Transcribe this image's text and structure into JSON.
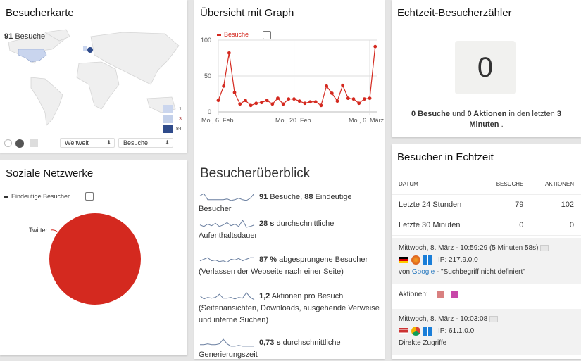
{
  "map_widget": {
    "title": "Besucherkarte",
    "total_value": "91",
    "total_label": "Besuche",
    "legend": [
      "1",
      "3",
      "84"
    ],
    "legend_colors": [
      "#cbd6ee",
      "#c3d0ea",
      "#2f4b8b"
    ],
    "region_select": "Weltweit",
    "metric_select": "Besuche",
    "highlighted": {
      "Deutschland": 84,
      "USA": 3,
      "UK": 1
    }
  },
  "social_widget": {
    "title": "Soziale Netzwerke",
    "legend": "Eindeutige Besucher",
    "chart_data": {
      "type": "pie",
      "categories": [
        "Twitter"
      ],
      "values": [
        1
      ],
      "colors": [
        "#d4291f"
      ]
    }
  },
  "graph_widget": {
    "title": "Übersicht mit Graph",
    "chart_data": {
      "type": "line",
      "series": [
        {
          "name": "Besuche",
          "color": "#d4291f",
          "values": [
            16,
            36,
            82,
            27,
            11,
            16,
            9,
            12,
            13,
            16,
            11,
            19,
            11,
            18,
            18,
            15,
            12,
            14,
            14,
            9,
            36,
            26,
            15,
            37,
            19,
            18,
            12,
            18,
            19,
            91
          ]
        }
      ],
      "x_start": "2017-02-06",
      "x_ticks": [
        "Mo., 6. Feb.",
        "Mo., 20. Feb.",
        "Mo., 6. März"
      ],
      "y_ticks": [
        "0",
        "50",
        "100"
      ],
      "ylim": [
        0,
        100
      ],
      "grid": true,
      "legend": "top-left"
    }
  },
  "overview": {
    "title": "Besucherüberblick",
    "items": [
      {
        "v1": "91",
        "t1": " Besuche, ",
        "v2": "88",
        "t2": " Eindeutige Besucher",
        "sub": ""
      },
      {
        "v1": "28 s",
        "t1": " durchschnittliche",
        "sub": "Aufenthaltsdauer"
      },
      {
        "v1": "87 %",
        "t1": " abgesprungene Besucher",
        "sub": "(Verlassen der Webseite nach einer Seite)"
      },
      {
        "v1": "1,2",
        "t1": " Aktionen pro Besuch",
        "sub": "(Seitenansichten, Downloads, ausgehende Verweise und interne Suchen)"
      },
      {
        "v1": "0,73 s",
        "t1": " durchschnittliche",
        "sub": "Generierungszeit"
      }
    ]
  },
  "counter": {
    "title": "Echtzeit-Besucherzähler",
    "value": "0",
    "visits": "0 Besuche",
    "und": " und ",
    "actions": "0 Aktionen",
    "in_last": " in den letzten ",
    "minutes": "3",
    "minutes_label": "Minuten",
    "end": " ."
  },
  "realtime": {
    "title": "Besucher in Echtzeit",
    "headers": [
      "DATUM",
      "BESUCHE",
      "AKTIONEN"
    ],
    "rows": [
      {
        "label": "Letzte 24 Stunden",
        "visits": "79",
        "actions": "102"
      },
      {
        "label": "Letzte 30 Minuten",
        "visits": "0",
        "actions": "0"
      }
    ],
    "visits": [
      {
        "time": "Mittwoch, 8. März - 10:59:29 (5 Minuten 58s)",
        "ip": "IP: 217.9.0.0",
        "from": "von ",
        "source": "Google",
        "keyword": " - \"Suchbegriff nicht definiert\"",
        "actions_label": "Aktionen:"
      },
      {
        "time": "Mittwoch, 8. März - 10:03:08",
        "ip": "IP: 61.1.0.0",
        "referrer": "Direkte Zugriffe"
      }
    ]
  }
}
